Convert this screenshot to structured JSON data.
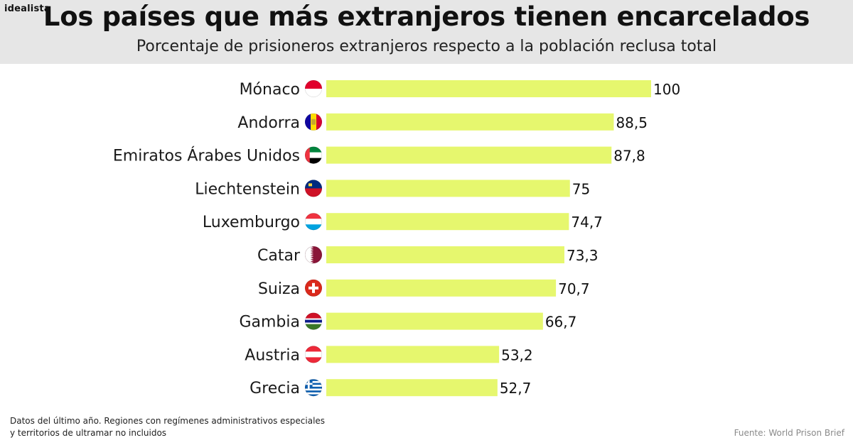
{
  "brand": "idealista",
  "title": "Los países que más extranjeros tienen encarcelados",
  "subtitle": "Porcentaje de prisioneros extranjeros respecto a la población reclusa total",
  "footnote": {
    "line1": "Datos del último año. Regiones con regímenes administrativos especiales",
    "line2": "y territorios de ultramar no incluidos"
  },
  "source": "Fuente: World Prison Brief",
  "colors": {
    "bar": "#e6f76e",
    "header_bg": "#e6e6e6",
    "text": "#1a1a1a",
    "source": "#8a8a8a"
  },
  "chart_data": {
    "type": "bar",
    "orientation": "horizontal",
    "title": "Los países que más extranjeros tienen encarcelados",
    "xlabel": "",
    "ylabel": "",
    "xlim": [
      0,
      100
    ],
    "grid": false,
    "categories": [
      "Mónaco",
      "Andorra",
      "Emiratos Árabes Unidos",
      "Liechtenstein",
      "Luxemburgo",
      "Catar",
      "Suiza",
      "Gambia",
      "Austria",
      "Grecia"
    ],
    "values": [
      100,
      88.5,
      87.8,
      75,
      74.7,
      73.3,
      70.7,
      66.7,
      53.2,
      52.7
    ],
    "value_labels": [
      "100",
      "88,5",
      "87,8",
      "75",
      "74,7",
      "73,3",
      "70,7",
      "66,7",
      "53,2",
      "52,7"
    ],
    "flag_icons": [
      "monaco-flag-icon",
      "andorra-flag-icon",
      "uae-flag-icon",
      "liechtenstein-flag-icon",
      "luxembourg-flag-icon",
      "qatar-flag-icon",
      "switzerland-flag-icon",
      "gambia-flag-icon",
      "austria-flag-icon",
      "greece-flag-icon"
    ]
  }
}
